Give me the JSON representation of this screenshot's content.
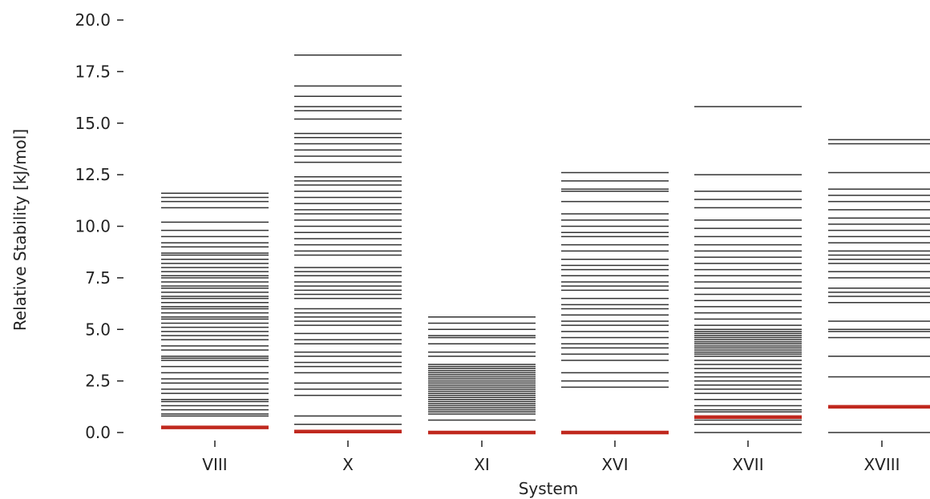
{
  "chart_data": {
    "type": "scatter",
    "xlabel": "System",
    "ylabel": "Relative Stability [kJ/mol]",
    "ylim": [
      0,
      20
    ],
    "yticks": [
      "0.0",
      "2.5",
      "5.0",
      "7.5",
      "10.0",
      "12.5",
      "15.0",
      "17.5",
      "20.0"
    ],
    "grid": false,
    "colors": {
      "levels": "#333333",
      "highlight": "#c0281e"
    },
    "categories": [
      "VIII",
      "X",
      "XI",
      "XVI",
      "XVII",
      "XVIII"
    ],
    "systems": [
      {
        "name": "VIII",
        "highlight": 0.25,
        "levels": [
          0.8,
          0.9,
          1.1,
          1.3,
          1.5,
          1.6,
          1.9,
          2.1,
          2.4,
          2.6,
          2.9,
          3.2,
          3.5,
          3.6,
          3.7,
          4.0,
          4.2,
          4.5,
          4.7,
          4.9,
          5.1,
          5.3,
          5.5,
          5.6,
          5.8,
          6.0,
          6.1,
          6.3,
          6.5,
          6.6,
          6.8,
          7.0,
          7.1,
          7.3,
          7.5,
          7.6,
          7.8,
          8.0,
          8.2,
          8.4,
          8.6,
          8.7,
          9.0,
          9.2,
          9.5,
          9.8,
          10.2,
          10.9,
          11.2,
          11.4,
          11.6
        ]
      },
      {
        "name": "X",
        "highlight": 0.05,
        "levels": [
          0.4,
          0.8,
          1.8,
          2.1,
          2.4,
          2.9,
          3.2,
          3.4,
          3.7,
          3.9,
          4.3,
          4.5,
          4.8,
          5.2,
          5.4,
          5.6,
          5.8,
          6.0,
          6.5,
          6.7,
          6.9,
          7.1,
          7.3,
          7.6,
          7.8,
          8.0,
          8.6,
          8.8,
          9.1,
          9.4,
          9.7,
          10.0,
          10.3,
          10.6,
          10.8,
          11.1,
          11.4,
          11.7,
          12.0,
          12.2,
          12.4,
          13.1,
          13.4,
          13.7,
          14.0,
          14.3,
          14.5,
          15.2,
          15.6,
          15.8,
          16.3,
          16.8,
          18.3
        ]
      },
      {
        "name": "XI",
        "highlight": 0.0,
        "levels": [
          0.6,
          0.9,
          1.0,
          1.1,
          1.2,
          1.3,
          1.4,
          1.5,
          1.6,
          1.7,
          1.8,
          1.9,
          2.0,
          2.1,
          2.2,
          2.3,
          2.4,
          2.5,
          2.6,
          2.7,
          2.8,
          2.9,
          3.0,
          3.1,
          3.2,
          3.3,
          3.7,
          3.9,
          4.3,
          4.6,
          4.7,
          5.0,
          5.3,
          5.6
        ]
      },
      {
        "name": "XVI",
        "highlight": 0.0,
        "levels": [
          2.2,
          2.5,
          2.9,
          3.5,
          3.8,
          4.1,
          4.3,
          4.6,
          4.9,
          5.2,
          5.4,
          5.7,
          6.0,
          6.2,
          6.5,
          6.9,
          7.1,
          7.3,
          7.6,
          7.9,
          8.1,
          8.4,
          8.8,
          9.1,
          9.5,
          9.7,
          10.0,
          10.3,
          10.6,
          11.2,
          11.7,
          11.8,
          12.2,
          12.6
        ]
      },
      {
        "name": "XVII",
        "highlight": 0.75,
        "levels": [
          0.0,
          0.4,
          0.6,
          1.0,
          1.1,
          1.3,
          1.6,
          1.9,
          2.1,
          2.3,
          2.5,
          2.7,
          2.9,
          3.1,
          3.3,
          3.5,
          3.7,
          3.8,
          3.9,
          4.0,
          4.1,
          4.2,
          4.3,
          4.4,
          4.5,
          4.6,
          4.7,
          4.8,
          4.9,
          5.0,
          5.2,
          5.5,
          5.8,
          6.1,
          6.4,
          6.7,
          7.0,
          7.3,
          7.6,
          7.9,
          8.2,
          8.5,
          8.8,
          9.1,
          9.5,
          9.9,
          10.3,
          10.9,
          11.3,
          11.7,
          12.5,
          15.8
        ]
      },
      {
        "name": "XVIII",
        "highlight": 1.25,
        "levels": [
          0.0,
          2.7,
          3.7,
          4.6,
          4.9,
          5.0,
          5.4,
          6.3,
          6.6,
          6.8,
          7.0,
          7.5,
          7.8,
          8.2,
          8.4,
          8.6,
          8.8,
          9.2,
          9.5,
          9.8,
          10.1,
          10.4,
          10.8,
          11.2,
          11.5,
          11.8,
          12.6,
          14.0,
          14.2
        ]
      }
    ]
  }
}
